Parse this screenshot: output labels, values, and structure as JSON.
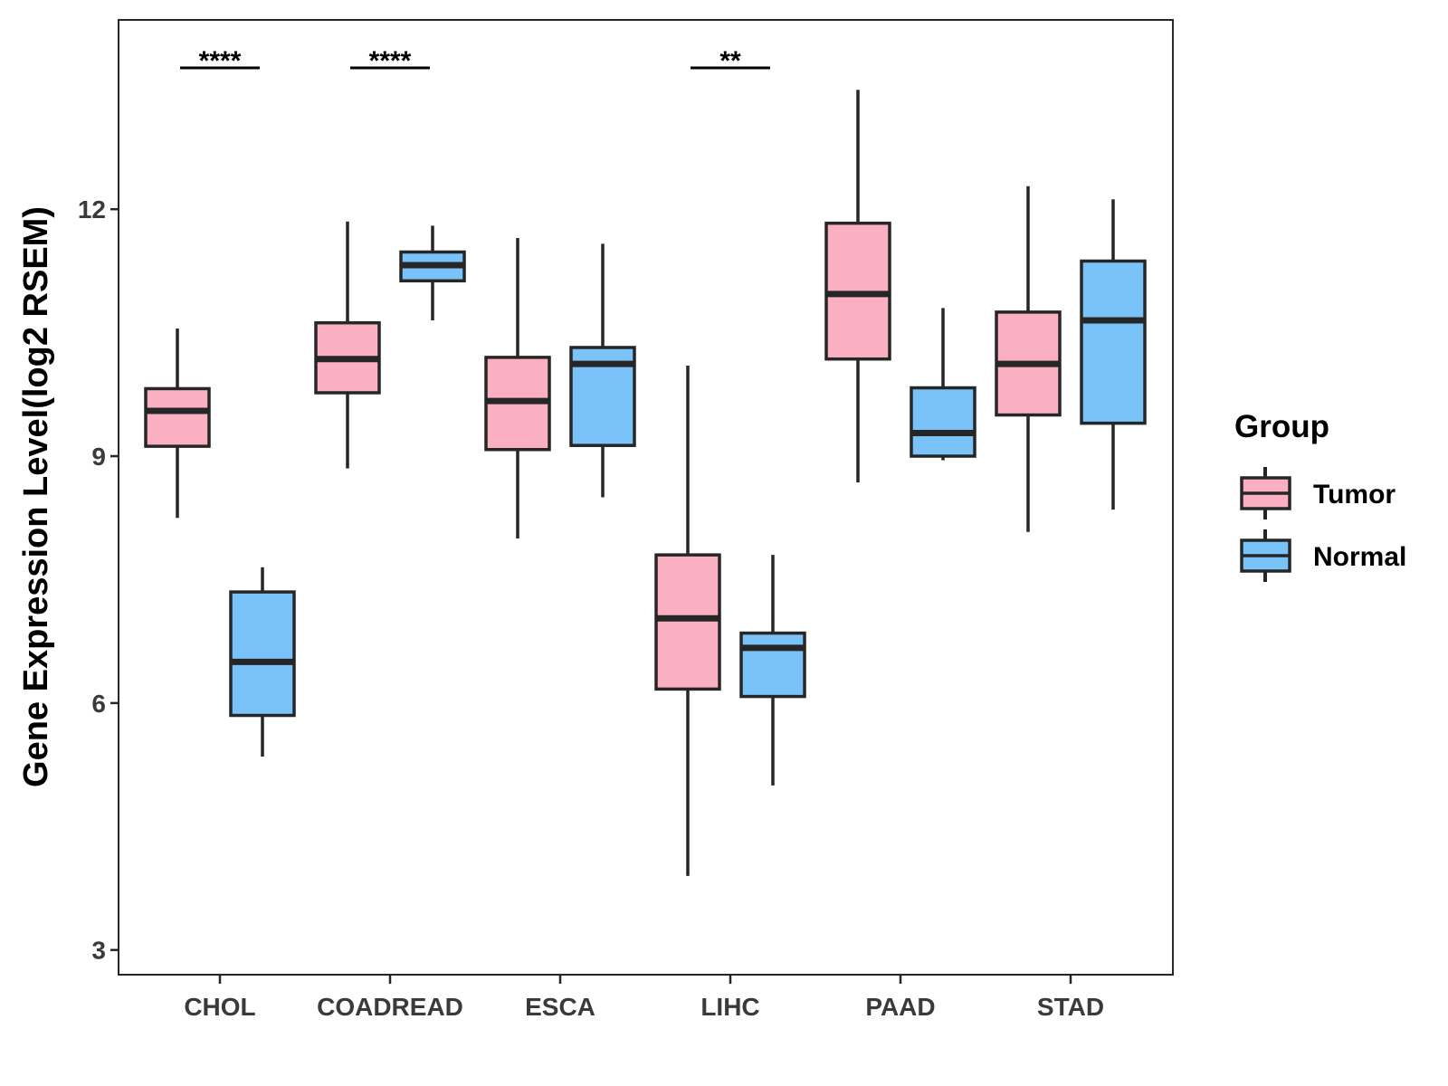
{
  "chart_data": {
    "type": "boxplot",
    "title": "",
    "xlabel": "",
    "ylabel": "Gene Expression Level(log2 RSEM)",
    "ylim": [
      2.7,
      14.3
    ],
    "yticks": [
      3,
      6,
      9,
      12
    ],
    "ytick_labels": [
      "3",
      "6",
      "9",
      "12"
    ],
    "categories": [
      "CHOL",
      "COADREAD",
      "ESCA",
      "LIHC",
      "PAAD",
      "STAD"
    ],
    "legend": {
      "title": "Group",
      "position": "right",
      "entries": [
        "Tumor",
        "Normal"
      ]
    },
    "colors": {
      "Tumor": "#FBB0C1",
      "Normal": "#7AC3F8",
      "outline": "#262626"
    },
    "series": [
      {
        "name": "Tumor",
        "boxes": [
          {
            "category": "CHOL",
            "whisker_low": 8.25,
            "q1": 9.12,
            "median": 9.55,
            "q3": 9.82,
            "whisker_high": 10.55
          },
          {
            "category": "COADREAD",
            "whisker_low": 8.85,
            "q1": 9.77,
            "median": 10.18,
            "q3": 10.62,
            "whisker_high": 11.85
          },
          {
            "category": "ESCA",
            "whisker_low": 8.0,
            "q1": 9.08,
            "median": 9.67,
            "q3": 10.2,
            "whisker_high": 11.65
          },
          {
            "category": "LIHC",
            "whisker_low": 3.9,
            "q1": 6.17,
            "median": 7.03,
            "q3": 7.8,
            "whisker_high": 10.1
          },
          {
            "category": "PAAD",
            "whisker_low": 8.68,
            "q1": 10.18,
            "median": 10.97,
            "q3": 11.83,
            "whisker_high": 13.45
          },
          {
            "category": "STAD",
            "whisker_low": 8.08,
            "q1": 9.5,
            "median": 10.12,
            "q3": 10.75,
            "whisker_high": 12.28
          }
        ]
      },
      {
        "name": "Normal",
        "boxes": [
          {
            "category": "CHOL",
            "whisker_low": 5.35,
            "q1": 5.85,
            "median": 6.5,
            "q3": 7.35,
            "whisker_high": 7.65
          },
          {
            "category": "COADREAD",
            "whisker_low": 10.65,
            "q1": 11.13,
            "median": 11.32,
            "q3": 11.48,
            "whisker_high": 11.8
          },
          {
            "category": "ESCA",
            "whisker_low": 8.5,
            "q1": 9.13,
            "median": 10.12,
            "q3": 10.32,
            "whisker_high": 11.58
          },
          {
            "category": "LIHC",
            "whisker_low": 5.0,
            "q1": 6.08,
            "median": 6.67,
            "q3": 6.85,
            "whisker_high": 7.8
          },
          {
            "category": "PAAD",
            "whisker_low": 8.95,
            "q1": 9.0,
            "median": 9.28,
            "q3": 9.83,
            "whisker_high": 10.8
          },
          {
            "category": "STAD",
            "whisker_low": 8.35,
            "q1": 9.4,
            "median": 10.65,
            "q3": 11.37,
            "whisker_high": 12.12
          }
        ]
      }
    ],
    "annotations": [
      {
        "category": "CHOL",
        "label": "****"
      },
      {
        "category": "COADREAD",
        "label": "****"
      },
      {
        "category": "LIHC",
        "label": "**"
      }
    ]
  }
}
